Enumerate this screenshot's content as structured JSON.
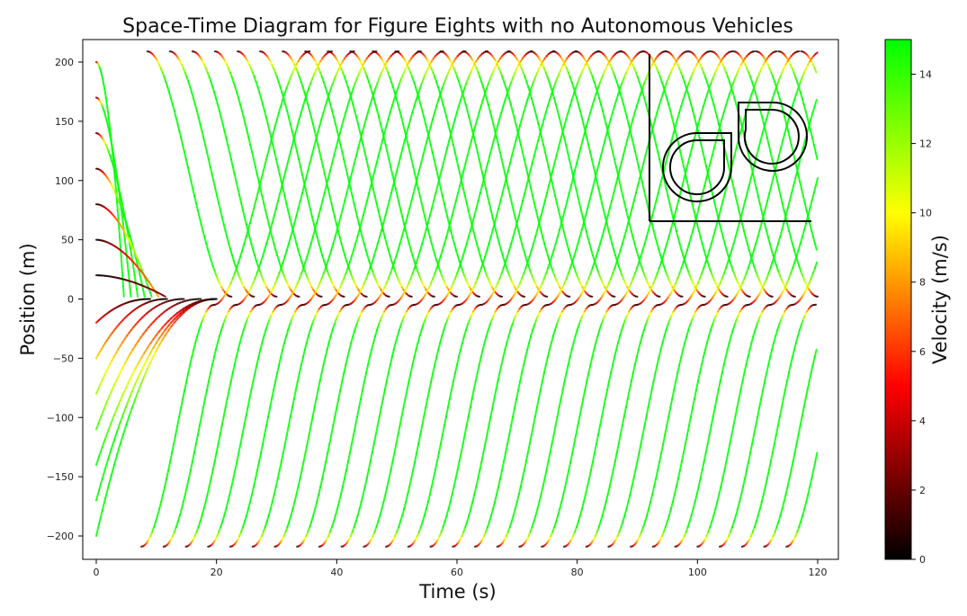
{
  "chart_data": [
    {
      "type": "line",
      "title": "Space-Time Diagram for Figure Eights with no Autonomous Vehicles",
      "xlabel": "Time (s)",
      "ylabel": "Position (m)",
      "xlim": [
        -2,
        121
      ],
      "ylim": [
        -220,
        215
      ],
      "xticks": [
        0,
        20,
        40,
        60,
        80,
        100,
        120
      ],
      "yticks": [
        -200,
        -150,
        -100,
        -50,
        0,
        50,
        100,
        150,
        200
      ],
      "grid": false,
      "color_encoding": "velocity",
      "series": [
        {
          "group": "initial-upper",
          "start": [
            0,
            200
          ],
          "end": [
            11.5,
            2
          ],
          "count": 7,
          "start_step": 30
        },
        {
          "group": "initial-lower",
          "start": [
            0,
            -20
          ],
          "end": [
            8,
            0
          ],
          "count": 7,
          "start_step": 30
        },
        {
          "group": "upper-approach",
          "start_x": 8.5,
          "start_x_step": 3.75,
          "count": 30,
          "start_y": 209,
          "end_y": 2
        },
        {
          "group": "lower-departure",
          "start_x": 7.5,
          "start_x_step": 3.7,
          "count": 30,
          "start_y": -209,
          "end_y": 209
        }
      ],
      "inset": {
        "description": "figure-eight track icon"
      }
    },
    {
      "type": "heatmap",
      "label": "Velocity (m/s)",
      "vlim": [
        0,
        15
      ],
      "ticks": [
        0,
        2,
        4,
        6,
        8,
        10,
        12,
        14
      ],
      "colormap": [
        "#000000",
        "#ff0000",
        "#ffff00",
        "#00ff00"
      ]
    }
  ]
}
